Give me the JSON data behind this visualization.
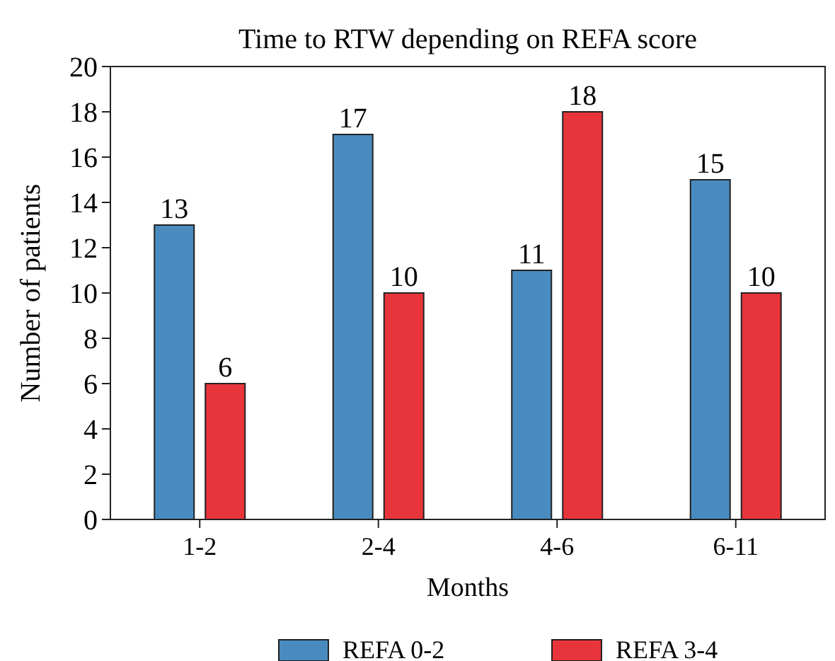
{
  "chart_data": {
    "type": "bar",
    "title": "Time to RTW depending on REFA score",
    "xlabel": "Months",
    "ylabel": "Number of patients",
    "categories": [
      "1-2",
      "2-4",
      "4-6",
      "6-11"
    ],
    "series": [
      {
        "name": "REFA 0-2",
        "color": "#4a8bbf",
        "values": [
          13,
          17,
          11,
          15
        ]
      },
      {
        "name": "REFA 3-4",
        "color": "#e8343b",
        "values": [
          6,
          10,
          18,
          10
        ]
      }
    ],
    "ylim": [
      0,
      20
    ],
    "yticks": [
      0,
      2,
      4,
      6,
      8,
      10,
      12,
      14,
      16,
      18,
      20
    ],
    "data_labels": true,
    "legend": "bottom",
    "grid": false
  }
}
